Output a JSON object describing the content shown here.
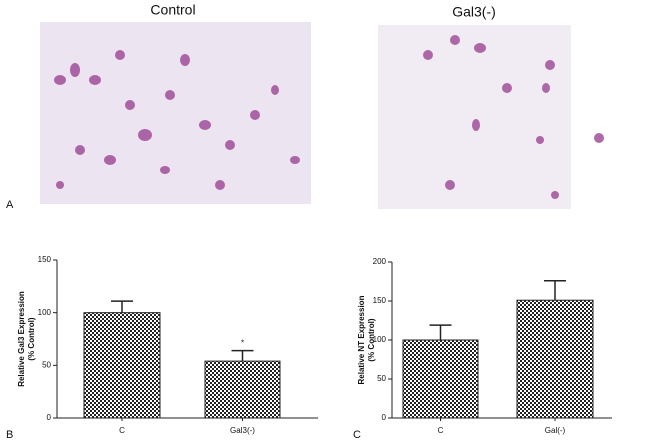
{
  "figure": {
    "image_titles": [
      "Control",
      "Gal3(-)"
    ],
    "panel_labels": [
      "A",
      "B",
      "C"
    ]
  },
  "chart_data": [
    {
      "type": "bar",
      "ylabel": [
        "Relative Gal3 Expression",
        "(% Control)"
      ],
      "categories": [
        "C",
        "Gal3(-)"
      ],
      "values": [
        100,
        54
      ],
      "errors": [
        11,
        10
      ],
      "annotation": "*",
      "color": "checker",
      "ylim": [
        0,
        150
      ],
      "yticks": [
        0,
        50,
        100,
        150
      ]
    },
    {
      "type": "bar",
      "ylabel": [
        "Relative NT Expression",
        "(% Control)"
      ],
      "categories": [
        "C",
        "Gal(-)"
      ],
      "values": [
        100,
        151
      ],
      "errors": [
        19,
        25
      ],
      "color": "checker",
      "ylim": [
        0,
        200
      ],
      "yticks": [
        0,
        50,
        100,
        150,
        200
      ]
    }
  ]
}
